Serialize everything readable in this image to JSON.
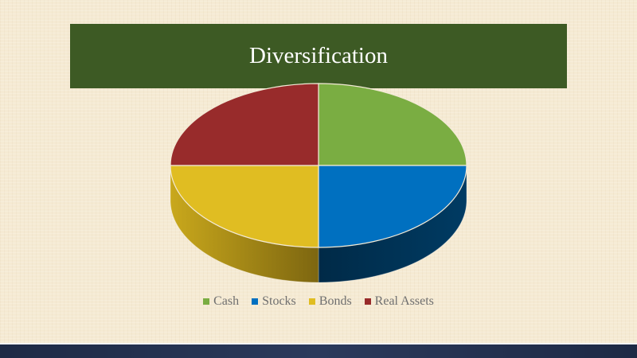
{
  "slide": {
    "title": "Diversification"
  },
  "chart_data": {
    "type": "pie",
    "categories": [
      "Cash",
      "Stocks",
      "Bonds",
      "Real Assets"
    ],
    "values": [
      25,
      25,
      25,
      25
    ],
    "colors": [
      "#7aad42",
      "#0070c0",
      "#e0bd22",
      "#982b2b"
    ],
    "legend_position": "bottom",
    "style": "3d"
  }
}
